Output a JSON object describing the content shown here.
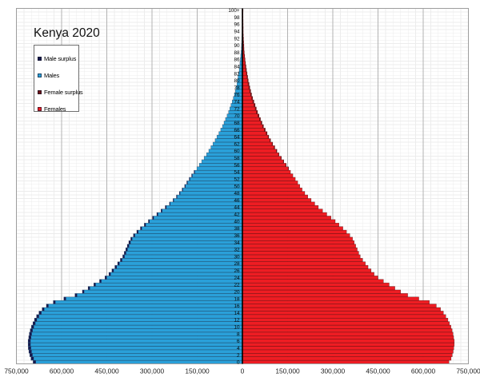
{
  "chart": {
    "title": "Kenya 2020",
    "legend": {
      "items": [
        {
          "label": "Male surplus",
          "color": "#161a4e"
        },
        {
          "label": "Males",
          "color": "#2aa0d9"
        },
        {
          "label": "Female surplus",
          "color": "#6e1216"
        },
        {
          "label": "Females",
          "color": "#ee1d23"
        }
      ]
    }
  },
  "chart_data": {
    "type": "bar",
    "subtype": "population_pyramid",
    "title": "Kenya 2020",
    "orientation": "horizontal",
    "age_min": 0,
    "age_max": 100,
    "age_top_label": "100+",
    "age_label_step": 2,
    "axis": {
      "xlim": [
        -750000,
        750000
      ],
      "major_tick_step": 150000,
      "minor_grid_step": 25000,
      "grid": true,
      "tick_values": [
        -750000,
        -600000,
        -450000,
        -300000,
        -150000,
        0,
        150000,
        300000,
        450000,
        600000,
        750000
      ],
      "tick_labels": [
        "750,000",
        "600,000",
        "450,000",
        "300,000",
        "150,000",
        "0",
        "150,000",
        "300,000",
        "450,000",
        "600,000",
        "750,000"
      ]
    },
    "colors": {
      "males": "#2aa0d9",
      "females": "#ee1d23",
      "male_surplus": "#161a4e",
      "female_surplus": "#6e1216",
      "axis_line": "#000000",
      "grid_minor": "#ececec",
      "grid_major": "#b3b3b3",
      "plot_border": "#9d9d9d"
    },
    "legend_position": "upper-left",
    "series": [
      {
        "name": "Males",
        "values": [
          694500,
          701500,
          705500,
          708500,
          710500,
          711000,
          711000,
          709000,
          707000,
          704000,
          700000,
          695000,
          690000,
          683000,
          675000,
          664500,
          650500,
          627500,
          592500,
          555500,
          531000,
          512000,
          493000,
          474000,
          456000,
          443000,
          433000,
          423000,
          414000,
          405000,
          397000,
          392000,
          387000,
          382000,
          377000,
          370500,
          361500,
          350500,
          338500,
          325500,
          312000,
          298000,
          284000,
          270000,
          256000,
          242000,
          230000,
          219000,
          209000,
          200000,
          191500,
          184500,
          176500,
          168500,
          160500,
          151000,
          143000,
          135000,
          127000,
          119000,
          111500,
          104500,
          97500,
          90500,
          84500,
          78000,
          72000,
          66000,
          61000,
          56000,
          50800,
          45800,
          41800,
          37800,
          33800,
          30000,
          26500,
          23500,
          20500,
          18000,
          16500,
          14500,
          12500,
          10500,
          9000,
          8200,
          6800,
          5500,
          4200,
          3200,
          2900,
          2200,
          1600,
          1100,
          700,
          700,
          450,
          300,
          150,
          50,
          230
        ]
      },
      {
        "name": "Females",
        "values": [
          685500,
          692500,
          696500,
          699500,
          701500,
          703000,
          703000,
          701000,
          699000,
          696000,
          692000,
          687000,
          682000,
          675000,
          667000,
          657500,
          643500,
          620500,
          585500,
          548500,
          525000,
          506000,
          487000,
          468000,
          450000,
          437000,
          427000,
          417000,
          408000,
          399000,
          391000,
          386000,
          381000,
          376000,
          371000,
          365500,
          356500,
          345500,
          333500,
          320500,
          308000,
          294000,
          280000,
          266000,
          252000,
          240000,
          228000,
          217000,
          207000,
          198000,
          190500,
          183500,
          175500,
          167500,
          159500,
          153000,
          145000,
          137000,
          129000,
          121000,
          114500,
          107500,
          100500,
          93500,
          87500,
          82000,
          76000,
          70000,
          65000,
          60000,
          55200,
          50200,
          46200,
          42200,
          38200,
          34000,
          30500,
          27500,
          24500,
          22000,
          19500,
          17500,
          15500,
          13500,
          12000,
          9800,
          8200,
          7000,
          5800,
          4800,
          3700,
          3000,
          2400,
          1900,
          1500,
          900,
          650,
          500,
          350,
          250,
          380
        ]
      }
    ],
    "surplus_note": "surplus segments are |males-females| drawn dark at the tip of the longer bar"
  }
}
